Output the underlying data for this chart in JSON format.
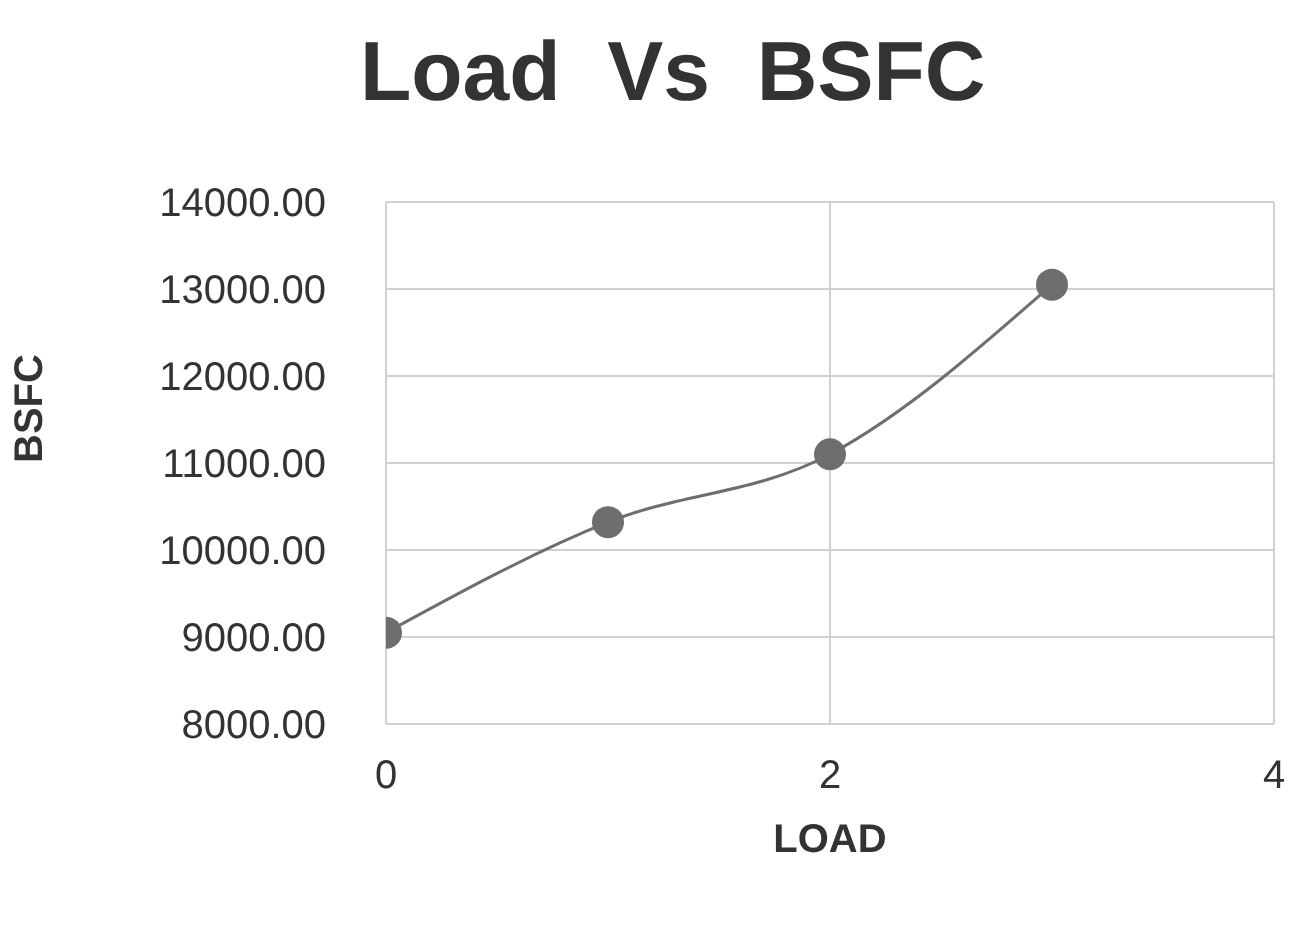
{
  "chart_data": {
    "type": "line",
    "title": "Load  Vs  BSFC",
    "xlabel": "LOAD",
    "ylabel": "BSFC",
    "x": [
      0,
      1,
      2,
      3
    ],
    "series": [
      {
        "color": "#6e6e6e",
        "values": [
          9050,
          10320,
          11100,
          13050
        ]
      }
    ],
    "xlim": [
      0,
      4
    ],
    "xticks": [
      0,
      2,
      4
    ],
    "ylim": [
      8000,
      14000
    ],
    "yticks": [
      {
        "value": 8000,
        "label": "8000.00"
      },
      {
        "value": 9000,
        "label": "9000.00"
      },
      {
        "value": 10000,
        "label": "10000.00"
      },
      {
        "value": 11000,
        "label": "11000.00"
      },
      {
        "value": 12000,
        "label": "12000.00"
      },
      {
        "value": 13000,
        "label": "13000.00"
      },
      {
        "value": 14000,
        "label": "14000.00"
      }
    ],
    "grid": true,
    "marker": "circle",
    "line_style": "solid"
  }
}
